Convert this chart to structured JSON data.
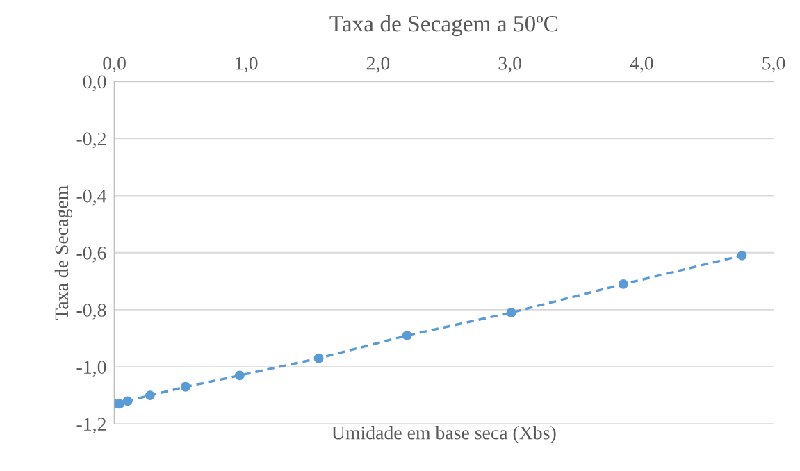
{
  "chart_data": {
    "type": "line",
    "title": "Taxa de Secagem a 50ºC",
    "xlabel": "Umidade em base seca (Xbs)",
    "ylabel": "Taxa de Secagem",
    "x": [
      0.0,
      0.04,
      0.1,
      0.27,
      0.54,
      0.95,
      1.55,
      2.22,
      3.01,
      3.86,
      4.76
    ],
    "series": [
      {
        "color": "#5b9bd5",
        "values": [
          -1.13,
          -1.13,
          -1.12,
          -1.1,
          -1.07,
          -1.03,
          -0.97,
          -0.89,
          -0.81,
          -0.71,
          -0.61
        ]
      }
    ],
    "xlim": [
      0,
      5
    ],
    "xticks": [
      {
        "value": 0,
        "label": "0,0"
      },
      {
        "value": 1,
        "label": "1,0"
      },
      {
        "value": 2,
        "label": "2,0"
      },
      {
        "value": 3,
        "label": "3,0"
      },
      {
        "value": 4,
        "label": "4,0"
      },
      {
        "value": 5,
        "label": "5,0"
      }
    ],
    "ylim": [
      -1.2,
      0
    ],
    "yticks": [
      {
        "value": 0,
        "label": "0,0"
      },
      {
        "value": -0.2,
        "label": "-0,2"
      },
      {
        "value": -0.4,
        "label": "-0,4"
      },
      {
        "value": -0.6,
        "label": "-0,6"
      },
      {
        "value": -0.8,
        "label": "-0,8"
      },
      {
        "value": -1.0,
        "label": "-1,0"
      },
      {
        "value": -1.2,
        "label": "-1,2"
      }
    ],
    "grid": "y",
    "marker": "circle",
    "line_style": "dashed",
    "legend": false
  }
}
